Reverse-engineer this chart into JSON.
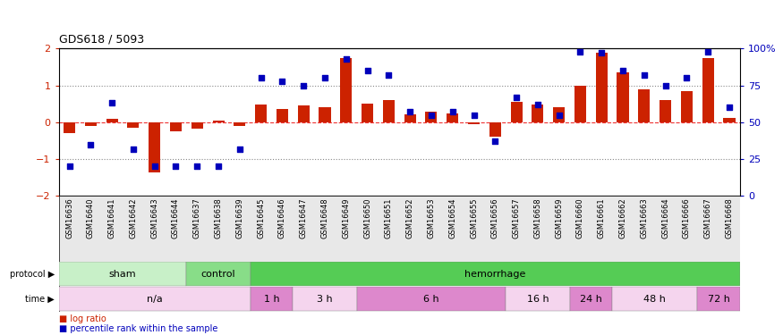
{
  "title": "GDS618 / 5093",
  "samples": [
    "GSM16636",
    "GSM16640",
    "GSM16641",
    "GSM16642",
    "GSM16643",
    "GSM16644",
    "GSM16637",
    "GSM16638",
    "GSM16639",
    "GSM16645",
    "GSM16646",
    "GSM16647",
    "GSM16648",
    "GSM16649",
    "GSM16650",
    "GSM16651",
    "GSM16652",
    "GSM16653",
    "GSM16654",
    "GSM16655",
    "GSM16656",
    "GSM16657",
    "GSM16658",
    "GSM16659",
    "GSM16660",
    "GSM16661",
    "GSM16662",
    "GSM16663",
    "GSM16664",
    "GSM16666",
    "GSM16667",
    "GSM16668"
  ],
  "log_ratio": [
    -0.3,
    -0.1,
    0.1,
    -0.15,
    -1.35,
    -0.25,
    -0.18,
    0.05,
    -0.1,
    0.48,
    0.35,
    0.45,
    0.4,
    1.75,
    0.5,
    0.6,
    0.22,
    0.28,
    0.25,
    -0.05,
    -0.38,
    0.55,
    0.48,
    0.42,
    1.0,
    1.9,
    1.35,
    0.9,
    0.6,
    0.85,
    1.75,
    0.12
  ],
  "percentile": [
    20,
    35,
    63,
    32,
    20,
    20,
    20,
    20,
    32,
    80,
    78,
    75,
    80,
    93,
    85,
    82,
    57,
    55,
    57,
    55,
    37,
    67,
    62,
    55,
    98,
    97,
    85,
    82,
    75,
    80,
    98,
    60
  ],
  "protocol_groups": [
    {
      "label": "sham",
      "start": 0,
      "end": 6,
      "color": "#C8F0C8"
    },
    {
      "label": "control",
      "start": 6,
      "end": 9,
      "color": "#88DD88"
    },
    {
      "label": "hemorrhage",
      "start": 9,
      "end": 32,
      "color": "#55CC55"
    }
  ],
  "time_groups": [
    {
      "label": "n/a",
      "start": 0,
      "end": 9,
      "color": "#F5D5EE"
    },
    {
      "label": "1 h",
      "start": 9,
      "end": 11,
      "color": "#DD88CC"
    },
    {
      "label": "3 h",
      "start": 11,
      "end": 14,
      "color": "#F5D5EE"
    },
    {
      "label": "6 h",
      "start": 14,
      "end": 21,
      "color": "#DD88CC"
    },
    {
      "label": "16 h",
      "start": 21,
      "end": 24,
      "color": "#F5D5EE"
    },
    {
      "label": "24 h",
      "start": 24,
      "end": 26,
      "color": "#DD88CC"
    },
    {
      "label": "48 h",
      "start": 26,
      "end": 30,
      "color": "#F5D5EE"
    },
    {
      "label": "72 h",
      "start": 30,
      "end": 32,
      "color": "#DD88CC"
    }
  ],
  "bar_color": "#CC2200",
  "dot_color": "#0000BB",
  "zero_line_color": "#EE3333",
  "dotted_line_color": "#888888",
  "ylim": [
    -2,
    2
  ],
  "y2lim": [
    0,
    100
  ],
  "bar_width": 0.55
}
